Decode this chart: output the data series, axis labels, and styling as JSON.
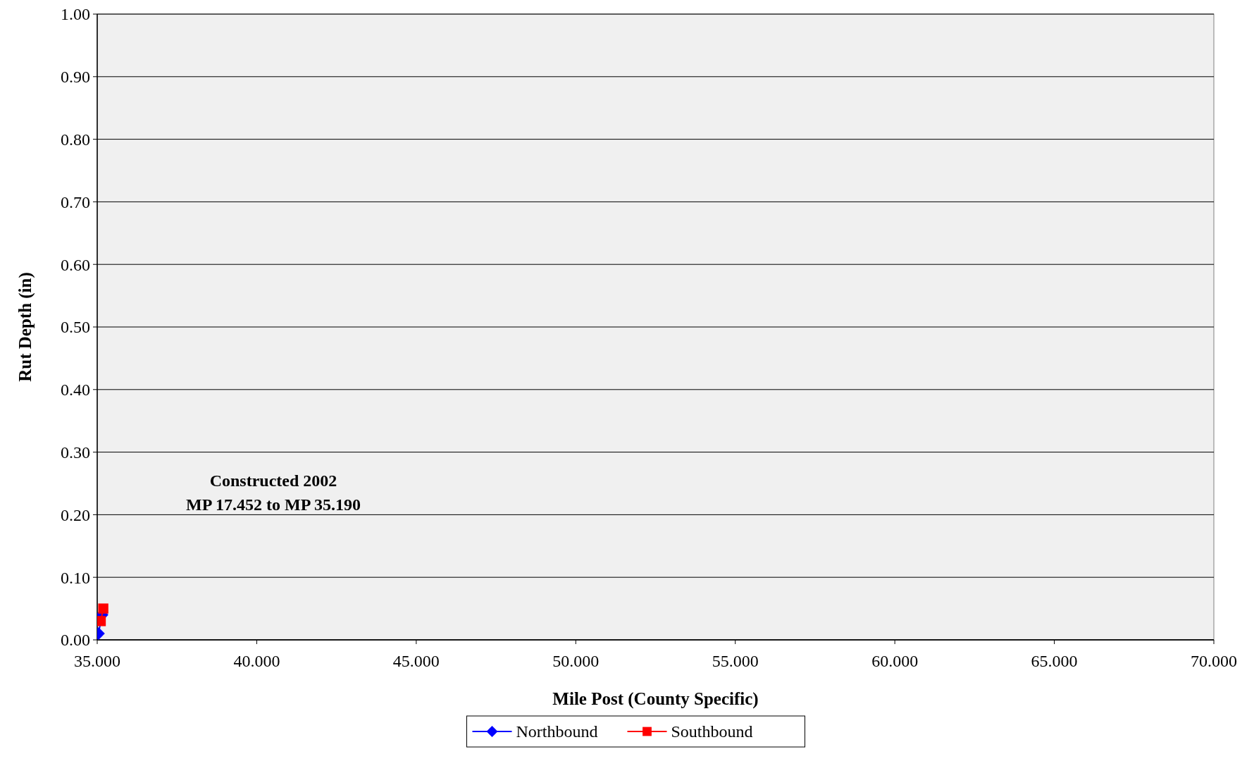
{
  "chart_data": {
    "type": "line",
    "xlabel": "Mile Post (County Specific)",
    "ylabel": "Rut Depth (in)",
    "annotations": [
      "Constructed 2002",
      "MP 17.452 to MP 35.190"
    ],
    "series": [
      {
        "name": "Northbound",
        "color": "#0000ff",
        "marker": "diamond",
        "x": [
          35.04,
          35.15
        ],
        "values": [
          0.01,
          0.04
        ]
      },
      {
        "name": "Southbound",
        "color": "#ff0000",
        "marker": "square",
        "x": [
          35.11,
          35.19
        ],
        "values": [
          0.03,
          0.05
        ]
      }
    ],
    "xlim": [
      35,
      70
    ],
    "xticks": [
      {
        "value": 35,
        "label": "35.000"
      },
      {
        "value": 40,
        "label": "40.000"
      },
      {
        "value": 45,
        "label": "45.000"
      },
      {
        "value": 50,
        "label": "50.000"
      },
      {
        "value": 55,
        "label": "55.000"
      },
      {
        "value": 60,
        "label": "60.000"
      },
      {
        "value": 65,
        "label": "65.000"
      },
      {
        "value": 70,
        "label": "70.000"
      }
    ],
    "ylim": [
      0,
      1
    ],
    "yticks": [
      {
        "value": 0,
        "label": "0.00"
      },
      {
        "value": 0.1,
        "label": "0.10"
      },
      {
        "value": 0.2,
        "label": "0.20"
      },
      {
        "value": 0.3,
        "label": "0.30"
      },
      {
        "value": 0.4,
        "label": "0.40"
      },
      {
        "value": 0.5,
        "label": "0.50"
      },
      {
        "value": 0.6,
        "label": "0.60"
      },
      {
        "value": 0.7,
        "label": "0.70"
      },
      {
        "value": 0.8,
        "label": "0.80"
      },
      {
        "value": 0.9,
        "label": "0.90"
      },
      {
        "value": 1,
        "label": "1.00"
      }
    ],
    "grid": "y",
    "legend": "bottom"
  }
}
